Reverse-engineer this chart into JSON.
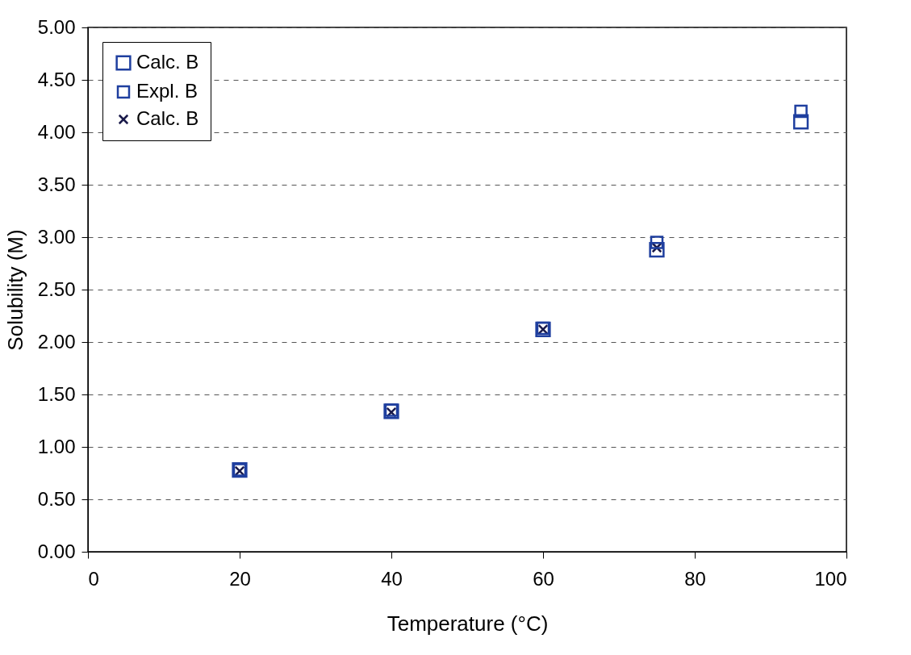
{
  "chart_data": {
    "type": "scatter",
    "xlabel": "Temperature (°C)",
    "ylabel": "Solubility (M)",
    "x": [
      20,
      40,
      60,
      75,
      94
    ],
    "series": [
      {
        "name": "Calc. B",
        "color": "#1f3f9f",
        "marker": "square",
        "values": [
          0.78,
          1.34,
          2.12,
          2.88,
          4.1
        ]
      },
      {
        "name": "Expl. B",
        "color": "#1f3f9f",
        "marker": "square",
        "values": [
          0.78,
          1.35,
          2.13,
          2.95,
          4.2
        ]
      },
      {
        "name": "Calc. B",
        "color": "#1a1a4a",
        "marker": "cross",
        "values": [
          0.77,
          1.33,
          2.12,
          2.9,
          null
        ]
      }
    ],
    "xlim": [
      0,
      100
    ],
    "xticks": [
      0,
      20,
      40,
      60,
      80,
      100
    ],
    "ylim": [
      0,
      5
    ],
    "yticks": [
      {
        "value": 0,
        "label": "0.00"
      },
      {
        "value": 0.5,
        "label": "0.50"
      },
      {
        "value": 1,
        "label": "1.00"
      },
      {
        "value": 1.5,
        "label": "1.50"
      },
      {
        "value": 2,
        "label": "2.00"
      },
      {
        "value": 2.5,
        "label": "2.50"
      },
      {
        "value": 3,
        "label": "3.00"
      },
      {
        "value": 3.5,
        "label": "3.50"
      },
      {
        "value": 4,
        "label": "4.00"
      },
      {
        "value": 4.5,
        "label": "4.50"
      },
      {
        "value": 5,
        "label": "5.00"
      }
    ],
    "grid": "y",
    "legend": "top left"
  }
}
